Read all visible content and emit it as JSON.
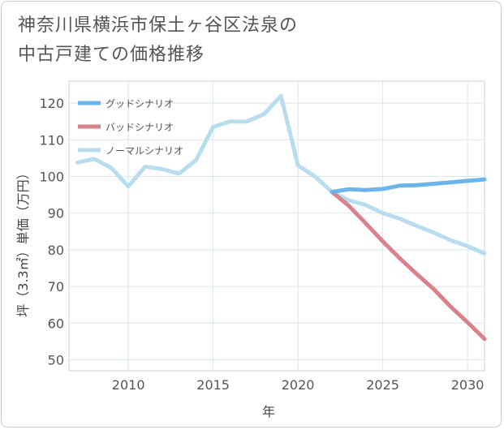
{
  "chart_data": {
    "type": "line",
    "title_line1": "神奈川県横浜市保土ヶ谷区法泉の",
    "title_line2": "中古戸建ての価格推移",
    "xlabel": "年",
    "ylabel": "坪（3.3㎡）単価（万円）",
    "xlim": [
      2006.5,
      2031
    ],
    "ylim": [
      47,
      126
    ],
    "x_ticks": [
      2010,
      2015,
      2020,
      2025,
      2030
    ],
    "y_ticks": [
      50,
      60,
      70,
      80,
      90,
      100,
      110,
      120
    ],
    "grid": true,
    "legend_position": "top-left",
    "series": [
      {
        "name": "グッドシナリオ",
        "color": "#6cb4ea",
        "x": [
          2022,
          2023,
          2024,
          2025,
          2026,
          2027,
          2028,
          2029,
          2030,
          2031
        ],
        "values": [
          95.8,
          96.5,
          96.3,
          96.6,
          97.5,
          97.6,
          98.0,
          98.4,
          98.8,
          99.2
        ]
      },
      {
        "name": "バッドシナリオ",
        "color": "#d9828b",
        "x": [
          2022,
          2023,
          2024,
          2025,
          2026,
          2027,
          2028,
          2029,
          2030,
          2031
        ],
        "values": [
          95.8,
          92.0,
          87.2,
          82.3,
          77.7,
          73.4,
          69.3,
          64.5,
          60.2,
          55.7
        ]
      },
      {
        "name": "ノーマルシナリオ",
        "color": "#b7ddef",
        "x": [
          2007,
          2008,
          2009,
          2010,
          2011,
          2012,
          2013,
          2014,
          2015,
          2016,
          2017,
          2018,
          2019,
          2020,
          2021,
          2022,
          2023,
          2024,
          2025,
          2026,
          2027,
          2028,
          2029,
          2030,
          2031
        ],
        "values": [
          103.8,
          104.8,
          102.3,
          97.3,
          102.7,
          102.0,
          100.8,
          104.5,
          113.5,
          115.0,
          115.0,
          117.0,
          122.0,
          103.0,
          100.0,
          95.8,
          93.5,
          92.2,
          90.0,
          88.5,
          86.5,
          84.7,
          82.6,
          81.0,
          79.0
        ]
      }
    ]
  }
}
